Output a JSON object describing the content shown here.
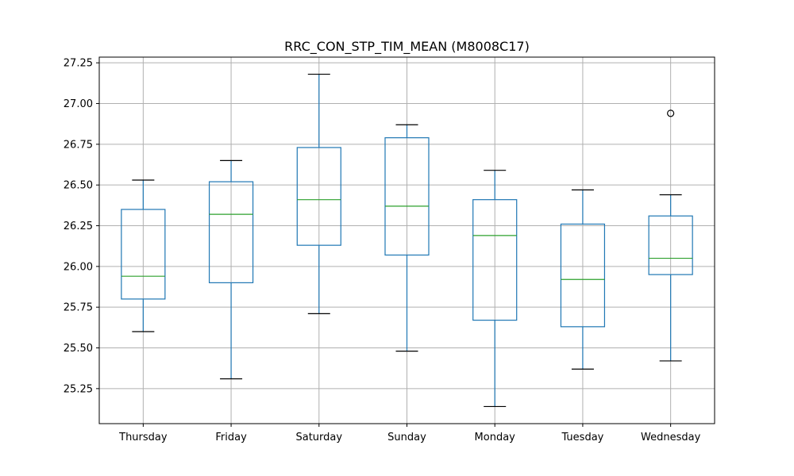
{
  "chart_data": {
    "type": "box",
    "title": "RRC_CON_STP_TIM_MEAN (M8008C17)",
    "xlabel": "",
    "ylabel": "",
    "ylim": [
      25.035,
      27.285
    ],
    "yticks": [
      "25.25",
      "25.50",
      "25.75",
      "26.00",
      "26.25",
      "26.50",
      "26.75",
      "27.00",
      "27.25"
    ],
    "grid": true,
    "legend": "none",
    "categories": [
      "Thursday",
      "Friday",
      "Saturday",
      "Sunday",
      "Monday",
      "Tuesday",
      "Wednesday"
    ],
    "boxes": [
      {
        "label": "Thursday",
        "whislo": 25.6,
        "q1": 25.8,
        "med": 25.94,
        "q3": 26.35,
        "whishi": 26.53,
        "fliers": []
      },
      {
        "label": "Friday",
        "whislo": 25.31,
        "q1": 25.9,
        "med": 26.32,
        "q3": 26.52,
        "whishi": 26.65,
        "fliers": []
      },
      {
        "label": "Saturday",
        "whislo": 25.71,
        "q1": 26.13,
        "med": 26.41,
        "q3": 26.73,
        "whishi": 27.18,
        "fliers": []
      },
      {
        "label": "Sunday",
        "whislo": 25.48,
        "q1": 26.07,
        "med": 26.37,
        "q3": 26.79,
        "whishi": 26.87,
        "fliers": []
      },
      {
        "label": "Monday",
        "whislo": 25.14,
        "q1": 25.67,
        "med": 26.19,
        "q3": 26.41,
        "whishi": 26.59,
        "fliers": []
      },
      {
        "label": "Tuesday",
        "whislo": 25.37,
        "q1": 25.63,
        "med": 25.92,
        "q3": 26.26,
        "whishi": 26.47,
        "fliers": []
      },
      {
        "label": "Wednesday",
        "whislo": 25.42,
        "q1": 25.95,
        "med": 26.05,
        "q3": 26.31,
        "whishi": 26.44,
        "fliers": [
          26.94
        ]
      }
    ],
    "colors": {
      "box": "#1f77b4",
      "median": "#2ca02c",
      "cap": "#000000",
      "flier": "#000000",
      "grid": "#b0b0b0",
      "axes": "#000000"
    }
  }
}
